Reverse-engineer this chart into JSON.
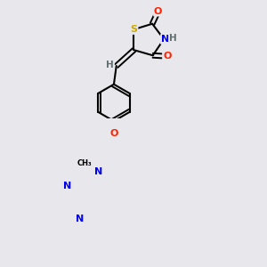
{
  "background_color": "#e8e8ec",
  "bond_color": "#000000",
  "atom_colors": {
    "O": "#ff2200",
    "N": "#0000ee",
    "S": "#ccaa00",
    "H": "#607070",
    "C": "#000000"
  },
  "figsize": [
    3.0,
    3.0
  ],
  "dpi": 100
}
